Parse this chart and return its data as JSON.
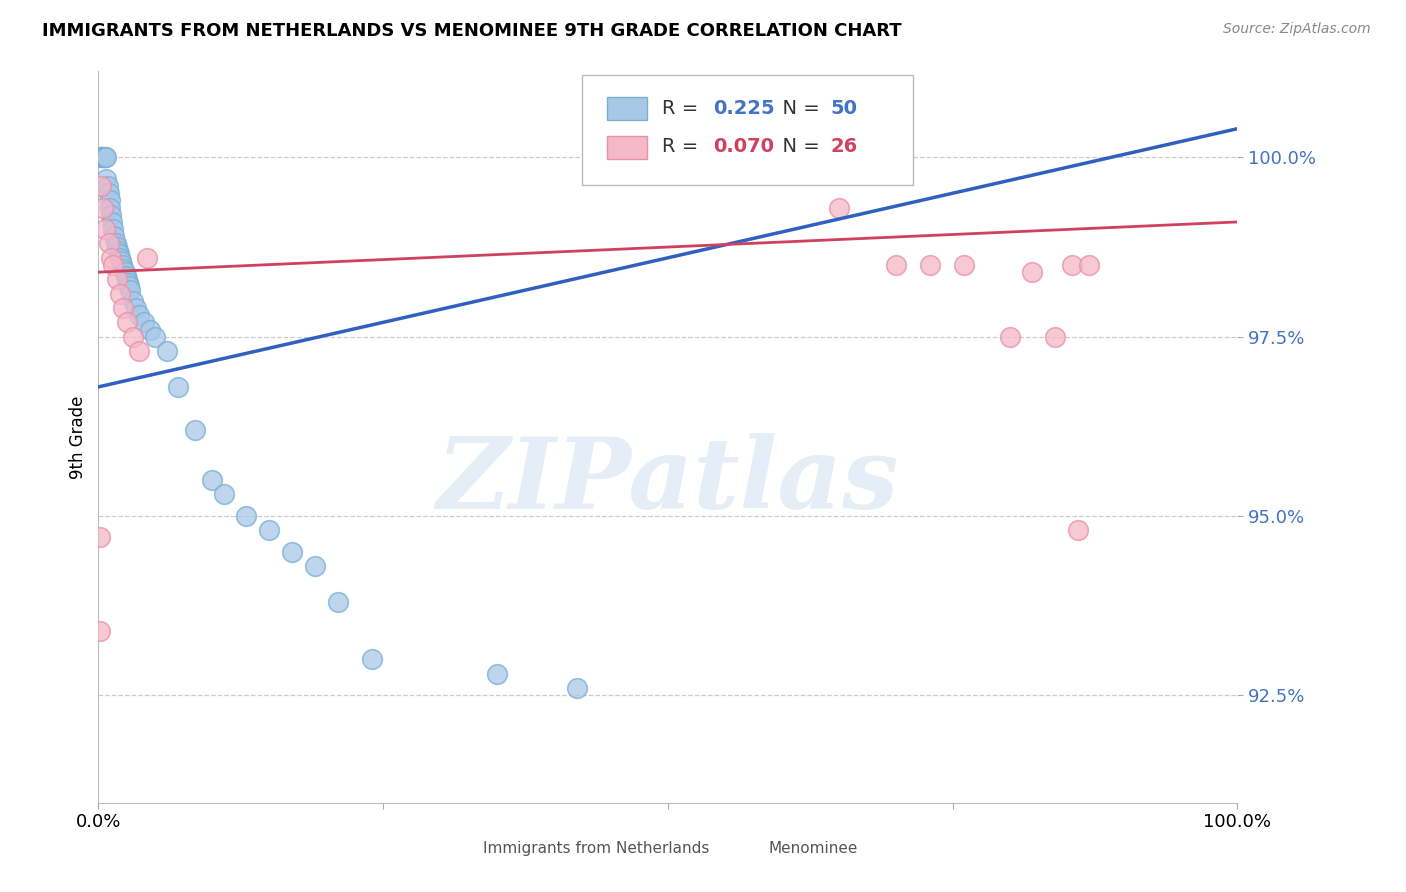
{
  "title": "IMMIGRANTS FROM NETHERLANDS VS MENOMINEE 9TH GRADE CORRELATION CHART",
  "source": "Source: ZipAtlas.com",
  "ylabel": "9th Grade",
  "y_ticks": [
    92.5,
    95.0,
    97.5,
    100.0
  ],
  "xlim": [
    0.0,
    1.0
  ],
  "ylim": [
    91.0,
    101.2
  ],
  "blue_color": "#a8c8e8",
  "blue_edge_color": "#7aafd4",
  "pink_color": "#f5b8c8",
  "pink_edge_color": "#e890a8",
  "blue_line_color": "#3060c0",
  "pink_line_color": "#d04060",
  "legend_R1": "0.225",
  "legend_N1": "50",
  "legend_R2": "0.070",
  "legend_N2": "26",
  "legend_label1": "Immigrants from Netherlands",
  "legend_label2": "Menominee",
  "watermark_text": "ZIPatlas",
  "blue_x": [
    0.001,
    0.002,
    0.003,
    0.004,
    0.005,
    0.006,
    0.007,
    0.007,
    0.008,
    0.009,
    0.01,
    0.01,
    0.011,
    0.012,
    0.013,
    0.014,
    0.015,
    0.016,
    0.017,
    0.018,
    0.019,
    0.02,
    0.021,
    0.022,
    0.023,
    0.024,
    0.025,
    0.026,
    0.027,
    0.028,
    0.03,
    0.033,
    0.036,
    0.04,
    0.045,
    0.05,
    0.06,
    0.07,
    0.085,
    0.1,
    0.11,
    0.13,
    0.15,
    0.17,
    0.19,
    0.21,
    0.24,
    0.35,
    0.42,
    0.46
  ],
  "blue_y": [
    100.0,
    100.0,
    100.0,
    100.0,
    100.0,
    100.0,
    100.0,
    99.7,
    99.6,
    99.5,
    99.4,
    99.3,
    99.2,
    99.1,
    99.0,
    98.9,
    98.8,
    98.75,
    98.7,
    98.65,
    98.6,
    98.55,
    98.5,
    98.45,
    98.4,
    98.35,
    98.3,
    98.25,
    98.2,
    98.15,
    98.0,
    97.9,
    97.8,
    97.7,
    97.6,
    97.5,
    97.3,
    96.8,
    96.2,
    95.5,
    95.3,
    95.0,
    94.8,
    94.5,
    94.3,
    93.8,
    93.0,
    92.8,
    92.6,
    100.0
  ],
  "pink_x": [
    0.002,
    0.004,
    0.006,
    0.009,
    0.011,
    0.013,
    0.016,
    0.019,
    0.022,
    0.025,
    0.03,
    0.036,
    0.043,
    0.001,
    0.001,
    0.6,
    0.65,
    0.7,
    0.73,
    0.76,
    0.8,
    0.82,
    0.84,
    0.855,
    0.86,
    0.87
  ],
  "pink_y": [
    99.6,
    99.3,
    99.0,
    98.8,
    98.6,
    98.5,
    98.3,
    98.1,
    97.9,
    97.7,
    97.5,
    97.3,
    98.6,
    94.7,
    93.4,
    100.0,
    99.3,
    98.5,
    98.5,
    98.5,
    97.5,
    98.4,
    97.5,
    98.5,
    94.8,
    98.5
  ],
  "blue_line_x": [
    0.0,
    1.0
  ],
  "blue_line_y": [
    96.8,
    100.4
  ],
  "pink_line_x": [
    0.0,
    1.0
  ],
  "pink_line_y": [
    98.4,
    99.1
  ]
}
